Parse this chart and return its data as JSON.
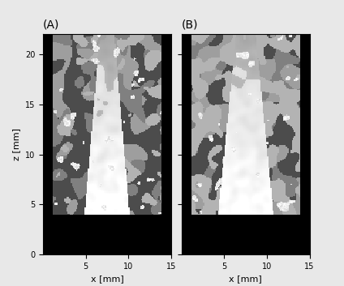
{
  "title_A": "(A)",
  "title_B": "(B)",
  "xlabel": "x [mm]",
  "ylabel": "z [mm]",
  "xlim": [
    0,
    15
  ],
  "ylim": [
    0,
    22
  ],
  "xticks": [
    5,
    10,
    15
  ],
  "yticks": [
    0,
    5,
    10,
    15,
    20
  ],
  "fig_bg": "#e8e8e8",
  "nx": 120,
  "nz": 200,
  "label_fontsize": 8,
  "title_fontsize": 10
}
